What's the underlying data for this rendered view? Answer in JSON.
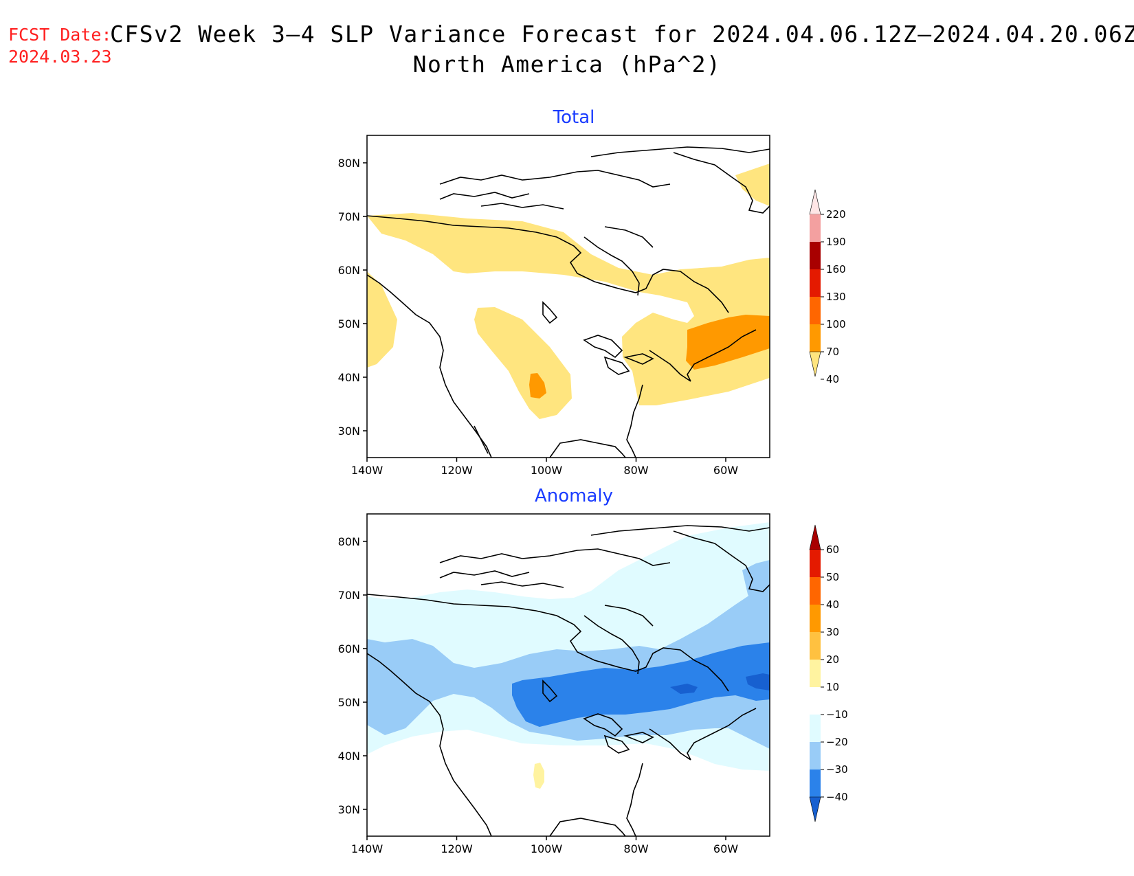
{
  "header": {
    "fcst_label": "FCST Date:",
    "fcst_date": "2024.03.23",
    "title": "CFSv2 Week 3–4 SLP Variance Forecast for 2024.04.06.12Z–2024.04.20.06Z",
    "subtitle": "North America (hPa^2)"
  },
  "axes": {
    "lat_labels": [
      "80N",
      "70N",
      "60N",
      "50N",
      "40N",
      "30N"
    ],
    "lon_labels": [
      "140W",
      "120W",
      "100W",
      "80W",
      "60W"
    ]
  },
  "panels": [
    {
      "title": "Total",
      "legend": {
        "labels": [
          "220",
          "190",
          "160",
          "130",
          "100",
          "70",
          "40"
        ],
        "colors": [
          "#ffe6e6",
          "#f3a0a0",
          "#a80000",
          "#e41a00",
          "#ff6600",
          "#ff9900",
          "#ffe57f"
        ],
        "extension": "arrows"
      }
    },
    {
      "title": "Anomaly",
      "legend": {
        "labels": [
          "60",
          "50",
          "40",
          "30",
          "20",
          "10",
          "−10",
          "−20",
          "−30",
          "−40"
        ],
        "colors": [
          "#a80000",
          "#e41a00",
          "#ff6600",
          "#ff9900",
          "#ffc140",
          "#fff3a0",
          "#ffffff",
          "#e0fbff",
          "#99ccf7",
          "#2b82ea",
          "#1760d0"
        ],
        "extension": "arrows"
      }
    }
  ],
  "colors": {
    "title_red": "#ff2020",
    "panel_title_blue": "#1a3cff"
  }
}
